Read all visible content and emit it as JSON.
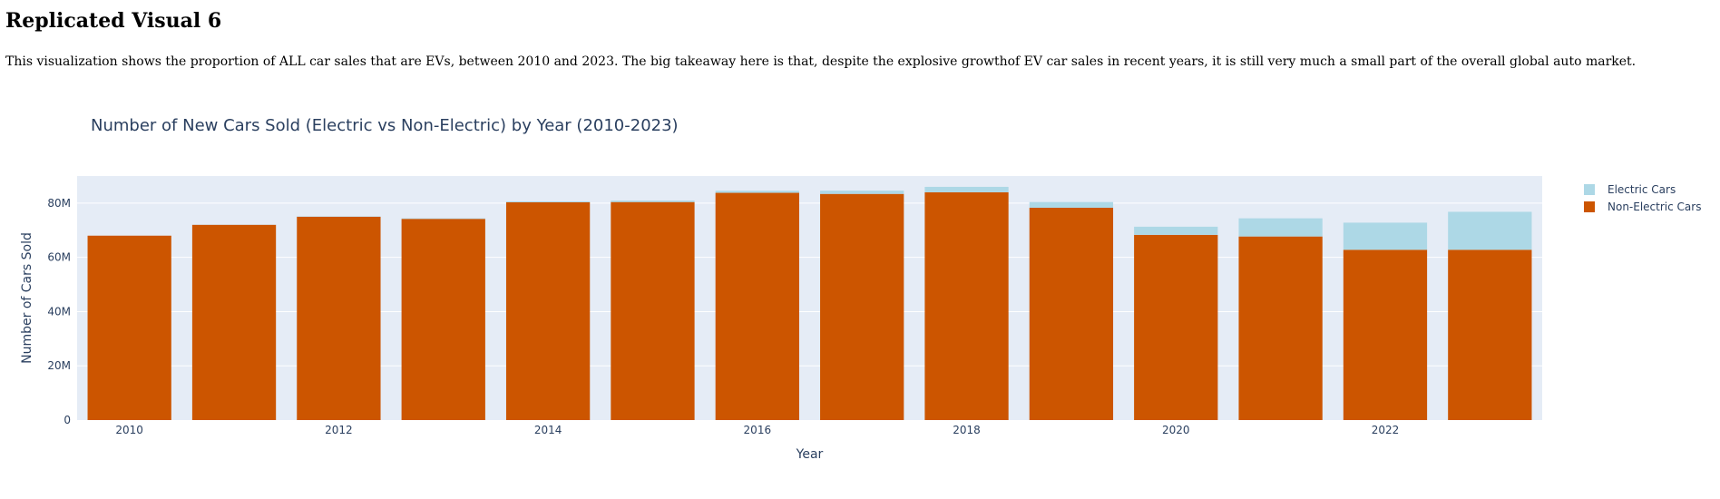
{
  "page": {
    "title": "Replicated Visual 6",
    "description": "This visualization shows the proportion of ALL car sales that are EVs, between 2010 and 2023. The big takeaway here is that, despite the explosive growthof EV car sales in recent years, it is still very much a small part of the overall global auto market."
  },
  "chart_data": {
    "type": "bar",
    "barmode": "stack",
    "title": "Number of New Cars Sold (Electric vs Non-Electric) by Year (2010-2023)",
    "xlabel": "Year",
    "ylabel": "Number of Cars Sold",
    "ylim": [
      0,
      90000000
    ],
    "grid": true,
    "legend_position": "top-right",
    "x": [
      2010,
      2011,
      2012,
      2013,
      2014,
      2015,
      2016,
      2017,
      2018,
      2019,
      2020,
      2021,
      2022,
      2023
    ],
    "x_tick_values": [
      2010,
      2012,
      2014,
      2016,
      2018,
      2020,
      2022
    ],
    "x_tick_labels": [
      "2010",
      "2012",
      "2014",
      "2016",
      "2018",
      "2020",
      "2022"
    ],
    "y_tick_values": [
      0,
      20000000,
      40000000,
      60000000,
      80000000
    ],
    "y_tick_labels": [
      "0",
      "20M",
      "40M",
      "60M",
      "80M"
    ],
    "series": [
      {
        "name": "Non-Electric Cars",
        "color": "#cc5500",
        "values": [
          68000000,
          72000000,
          75000000,
          74200000,
          80300000,
          80400000,
          83800000,
          83400000,
          84000000,
          78300000,
          68300000,
          67700000,
          62800000,
          62800000
        ]
      },
      {
        "name": "Electric Cars",
        "color": "#add8e6",
        "values": [
          10000,
          50000,
          130000,
          200000,
          320000,
          550000,
          750000,
          1200000,
          2000000,
          2100000,
          3000000,
          6700000,
          10000000,
          14000000
        ]
      }
    ],
    "legend_order": [
      "Electric Cars",
      "Non-Electric Cars"
    ]
  }
}
